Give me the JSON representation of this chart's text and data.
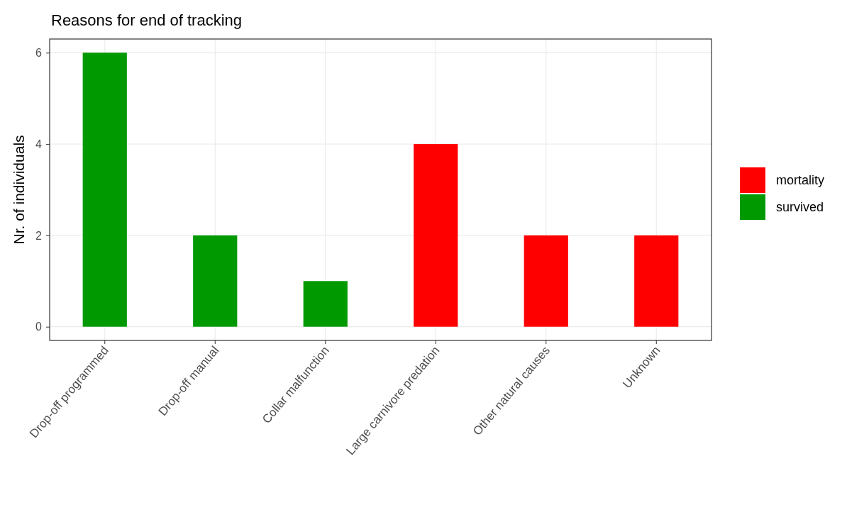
{
  "chart_data": {
    "type": "bar",
    "title": "Reasons for end of tracking",
    "ylabel": "Nr. of individuals",
    "categories": [
      "Drop-off programmed",
      "Drop-off manual",
      "Collar malfunction",
      "Large carnivore predation",
      "Other natural causes",
      "Unknown"
    ],
    "series": [
      {
        "name": "mortality",
        "color": "#ff0000",
        "values": [
          null,
          null,
          null,
          4,
          2,
          2
        ]
      },
      {
        "name": "survived",
        "color": "#009900",
        "values": [
          6,
          2,
          1,
          null,
          null,
          null
        ]
      }
    ],
    "ylim": [
      -0.3,
      6.3
    ],
    "yticks": [
      0,
      2,
      4,
      6
    ],
    "grid": true,
    "legend": "right"
  }
}
